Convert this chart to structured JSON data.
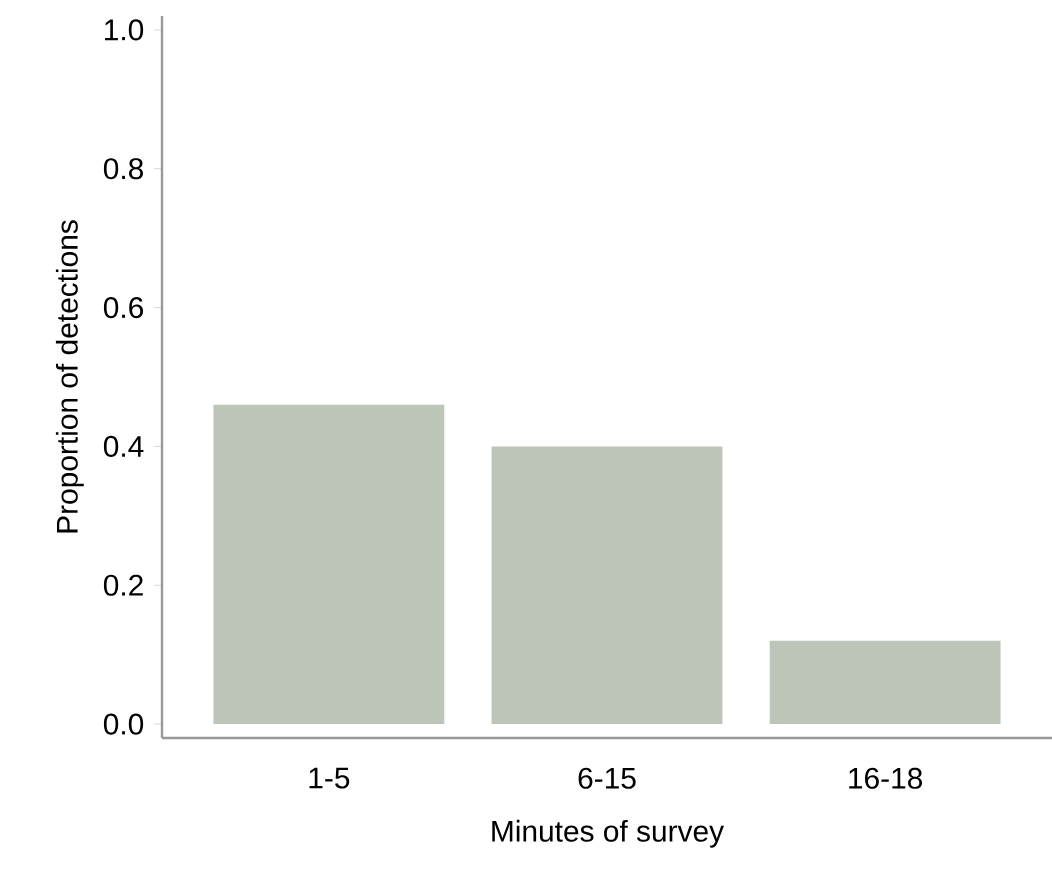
{
  "chart_data": {
    "type": "bar",
    "xlabel": "Minutes of survey",
    "ylabel": "Proportion of detections",
    "categories": [
      "1-5",
      "6-15",
      "16-18"
    ],
    "values": [
      0.46,
      0.4,
      0.12
    ],
    "color": "#bdc5b9",
    "ylim": [
      -0.02,
      1.02
    ],
    "yticks": [
      {
        "value": 0,
        "label": "0.0"
      },
      0.2,
      0.4,
      0.6,
      0.8,
      {
        "value": 1,
        "label": "1.0"
      }
    ]
  }
}
